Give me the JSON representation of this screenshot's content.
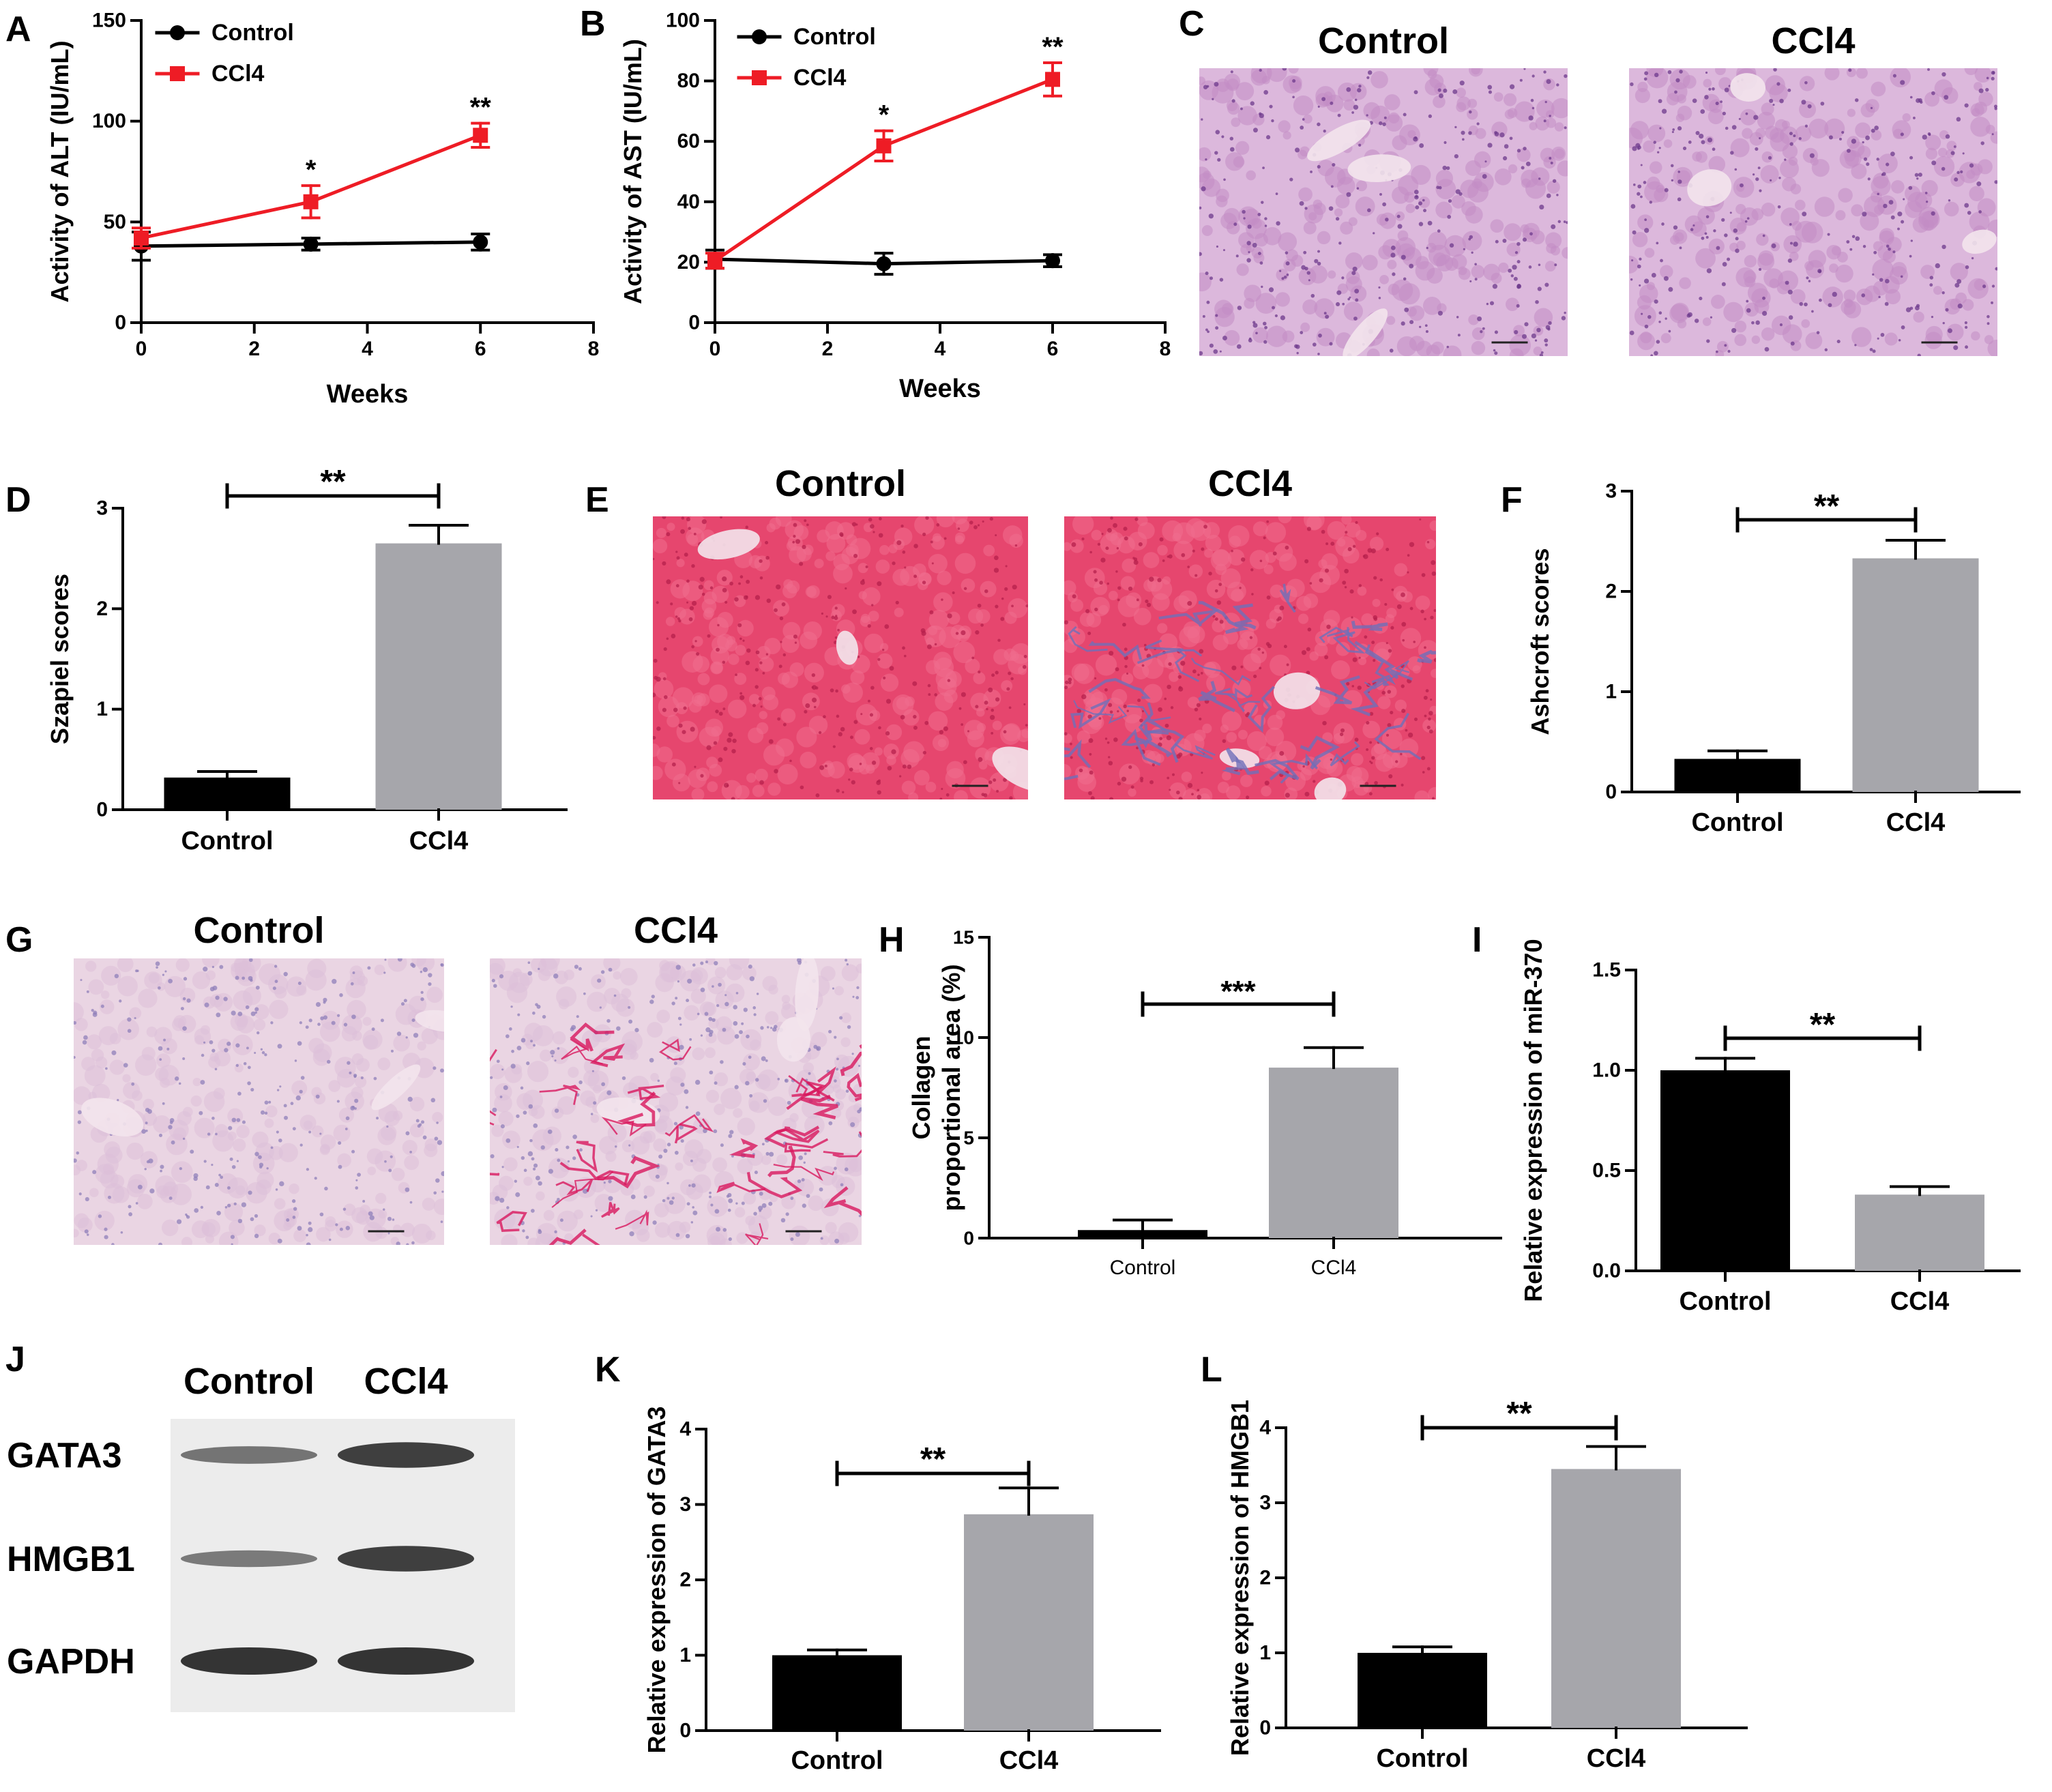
{
  "colors": {
    "black": "#000000",
    "red": "#ee1c25",
    "gray": "#a6a6ab",
    "he_stain": "#c48fc6",
    "masson_pink": "#e6466e",
    "masson_blue": "#6f6fb9",
    "sirius_bg": "#e6c8dc",
    "sirius_red": "#d8185e",
    "band": "#2a2a2a",
    "blot_bg": "#ececec"
  },
  "chart_data": [
    {
      "panel": "A",
      "type": "line",
      "ylabel": "Activity of ALT (IU/mL)",
      "xlabel": "Weeks",
      "xlim": [
        0,
        8
      ],
      "xticks": [
        0,
        2,
        4,
        6,
        8
      ],
      "ylim": [
        0,
        150
      ],
      "yticks": [
        0,
        50,
        100,
        150
      ],
      "legend": "top-left",
      "series": [
        {
          "name": "Control",
          "color": "#000000",
          "marker": "circle",
          "x": [
            0,
            3,
            6
          ],
          "y": [
            38,
            39,
            40
          ],
          "err": [
            7,
            3,
            4
          ]
        },
        {
          "name": "CCl4",
          "color": "#ee1c25",
          "marker": "square",
          "x": [
            0,
            3,
            6
          ],
          "y": [
            42,
            60,
            93
          ],
          "err": [
            5,
            8,
            6
          ],
          "sig": [
            "",
            "*",
            "**"
          ]
        }
      ]
    },
    {
      "panel": "B",
      "type": "line",
      "ylabel": "Activity of AST (IU/mL)",
      "xlabel": "Weeks",
      "xlim": [
        0,
        8
      ],
      "xticks": [
        0,
        2,
        4,
        6,
        8
      ],
      "ylim": [
        0,
        100
      ],
      "yticks": [
        0,
        20,
        40,
        60,
        80,
        100
      ],
      "legend": "top-left",
      "series": [
        {
          "name": "Control",
          "color": "#000000",
          "marker": "circle",
          "x": [
            0,
            3,
            6
          ],
          "y": [
            21,
            19.5,
            20.5
          ],
          "err": [
            3,
            3.5,
            2
          ]
        },
        {
          "name": "CCl4",
          "color": "#ee1c25",
          "marker": "square",
          "x": [
            0,
            3,
            6
          ],
          "y": [
            20.5,
            58.5,
            80.5
          ],
          "err": [
            2.5,
            5,
            5.5
          ],
          "sig": [
            "",
            "*",
            "**"
          ]
        }
      ]
    },
    {
      "panel": "D",
      "type": "bar",
      "ylabel": "Szapiel scores",
      "categories": [
        "Control",
        "CCl4"
      ],
      "values": [
        0.32,
        2.65
      ],
      "err": [
        0.06,
        0.18
      ],
      "ylim": [
        0,
        3
      ],
      "yticks": [
        0,
        1,
        2,
        3
      ],
      "sig": "**"
    },
    {
      "panel": "F",
      "type": "bar",
      "ylabel": "Ashcroft scores",
      "categories": [
        "Control",
        "CCl4"
      ],
      "values": [
        0.33,
        2.33
      ],
      "err": [
        0.08,
        0.18
      ],
      "ylim": [
        0,
        3
      ],
      "yticks": [
        0,
        1,
        2,
        3
      ],
      "sig": "**"
    },
    {
      "panel": "H",
      "type": "bar",
      "ylabel": [
        "Collagen",
        "proportional area (%)"
      ],
      "categories": [
        "Control",
        "CCl4"
      ],
      "values": [
        0.4,
        8.5
      ],
      "err": [
        0.5,
        1.0
      ],
      "ylim": [
        0,
        15
      ],
      "yticks": [
        0,
        5,
        10,
        15
      ],
      "sig": "***"
    },
    {
      "panel": "I",
      "type": "bar",
      "ylabel": "Relative expression of miR-370",
      "categories": [
        "Control",
        "CCl4"
      ],
      "values": [
        1.0,
        0.38
      ],
      "err": [
        0.06,
        0.04
      ],
      "ylim": [
        0,
        1.5
      ],
      "yticks": [
        "0.0",
        "0.5",
        "1.0",
        "1.5"
      ],
      "sig": "**"
    },
    {
      "panel": "K",
      "type": "bar",
      "ylabel": "Relative expression of GATA3",
      "categories": [
        "Control",
        "CCl4"
      ],
      "values": [
        1.0,
        2.87
      ],
      "err": [
        0.07,
        0.35
      ],
      "ylim": [
        0,
        4
      ],
      "yticks": [
        0,
        1,
        2,
        3,
        4
      ],
      "sig": "**"
    },
    {
      "panel": "L",
      "type": "bar",
      "ylabel": "Relative expression of HMGB1",
      "categories": [
        "Control",
        "CCl4"
      ],
      "values": [
        1.0,
        3.45
      ],
      "err": [
        0.08,
        0.3
      ],
      "ylim": [
        0,
        4
      ],
      "yticks": [
        0,
        1,
        2,
        3,
        4
      ],
      "sig": "**"
    }
  ],
  "micrographs": [
    {
      "panel": "C",
      "labels": [
        "Control",
        "CCl4"
      ],
      "stain": "he"
    },
    {
      "panel": "E",
      "labels": [
        "Control",
        "CCl4"
      ],
      "stain": "masson"
    },
    {
      "panel": "G",
      "labels": [
        "Control",
        "CCl4"
      ],
      "stain": "sirius"
    }
  ],
  "western_blot": {
    "panel": "J",
    "columns": [
      "Control",
      "CCl4"
    ],
    "rows": [
      {
        "label": "GATA3",
        "intensity": [
          0.45,
          0.9
        ]
      },
      {
        "label": "HMGB1",
        "intensity": [
          0.4,
          0.9
        ]
      },
      {
        "label": "GAPDH",
        "intensity": [
          1.0,
          1.0
        ]
      }
    ]
  },
  "panel_letters": [
    "A",
    "B",
    "C",
    "D",
    "E",
    "F",
    "G",
    "H",
    "I",
    "J",
    "K",
    "L"
  ]
}
